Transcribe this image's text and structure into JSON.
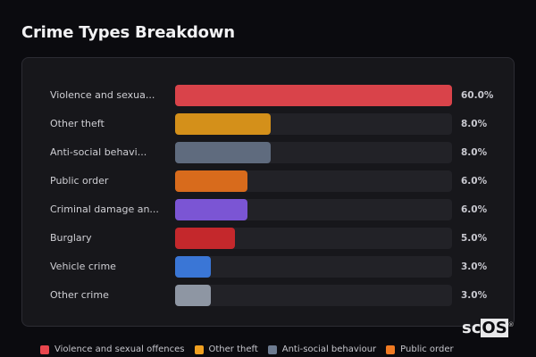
{
  "title": "Crime Types Breakdown",
  "logo": {
    "text_a": "sc",
    "text_b": "OS",
    "reg": "®"
  },
  "chart_data": {
    "type": "bar",
    "orientation": "horizontal",
    "title": "Crime Types Breakdown",
    "xlabel": "",
    "ylabel": "",
    "xlim": [
      0,
      60
    ],
    "categories": [
      "Violence and sexual offences",
      "Other theft",
      "Anti-social behaviour",
      "Public order",
      "Criminal damage and arson",
      "Burglary",
      "Vehicle crime",
      "Other crime"
    ],
    "display_labels": [
      "Violence and sexua...",
      "Other theft",
      "Anti-social behavi...",
      "Public order",
      "Criminal damage an...",
      "Burglary",
      "Vehicle crime",
      "Other crime"
    ],
    "values": [
      60.0,
      8.0,
      8.0,
      6.0,
      6.0,
      5.0,
      3.0,
      3.0
    ],
    "value_labels": [
      "60.0%",
      "8.0%",
      "8.0%",
      "6.0%",
      "6.0%",
      "5.0%",
      "3.0%",
      "3.0%"
    ],
    "colors": [
      "#d9434a",
      "#d4901a",
      "#5f6b7e",
      "#d86b1c",
      "#7b55d4",
      "#c4282c",
      "#3a76d6",
      "#8e96a3"
    ],
    "grid": false,
    "legend_position": "bottom",
    "legend": [
      {
        "label": "Violence and sexual offences",
        "color": "#e8464d"
      },
      {
        "label": "Other theft",
        "color": "#f0a020"
      },
      {
        "label": "Anti-social behaviour",
        "color": "#6d7b90"
      },
      {
        "label": "Public order",
        "color": "#f07a22"
      }
    ]
  }
}
